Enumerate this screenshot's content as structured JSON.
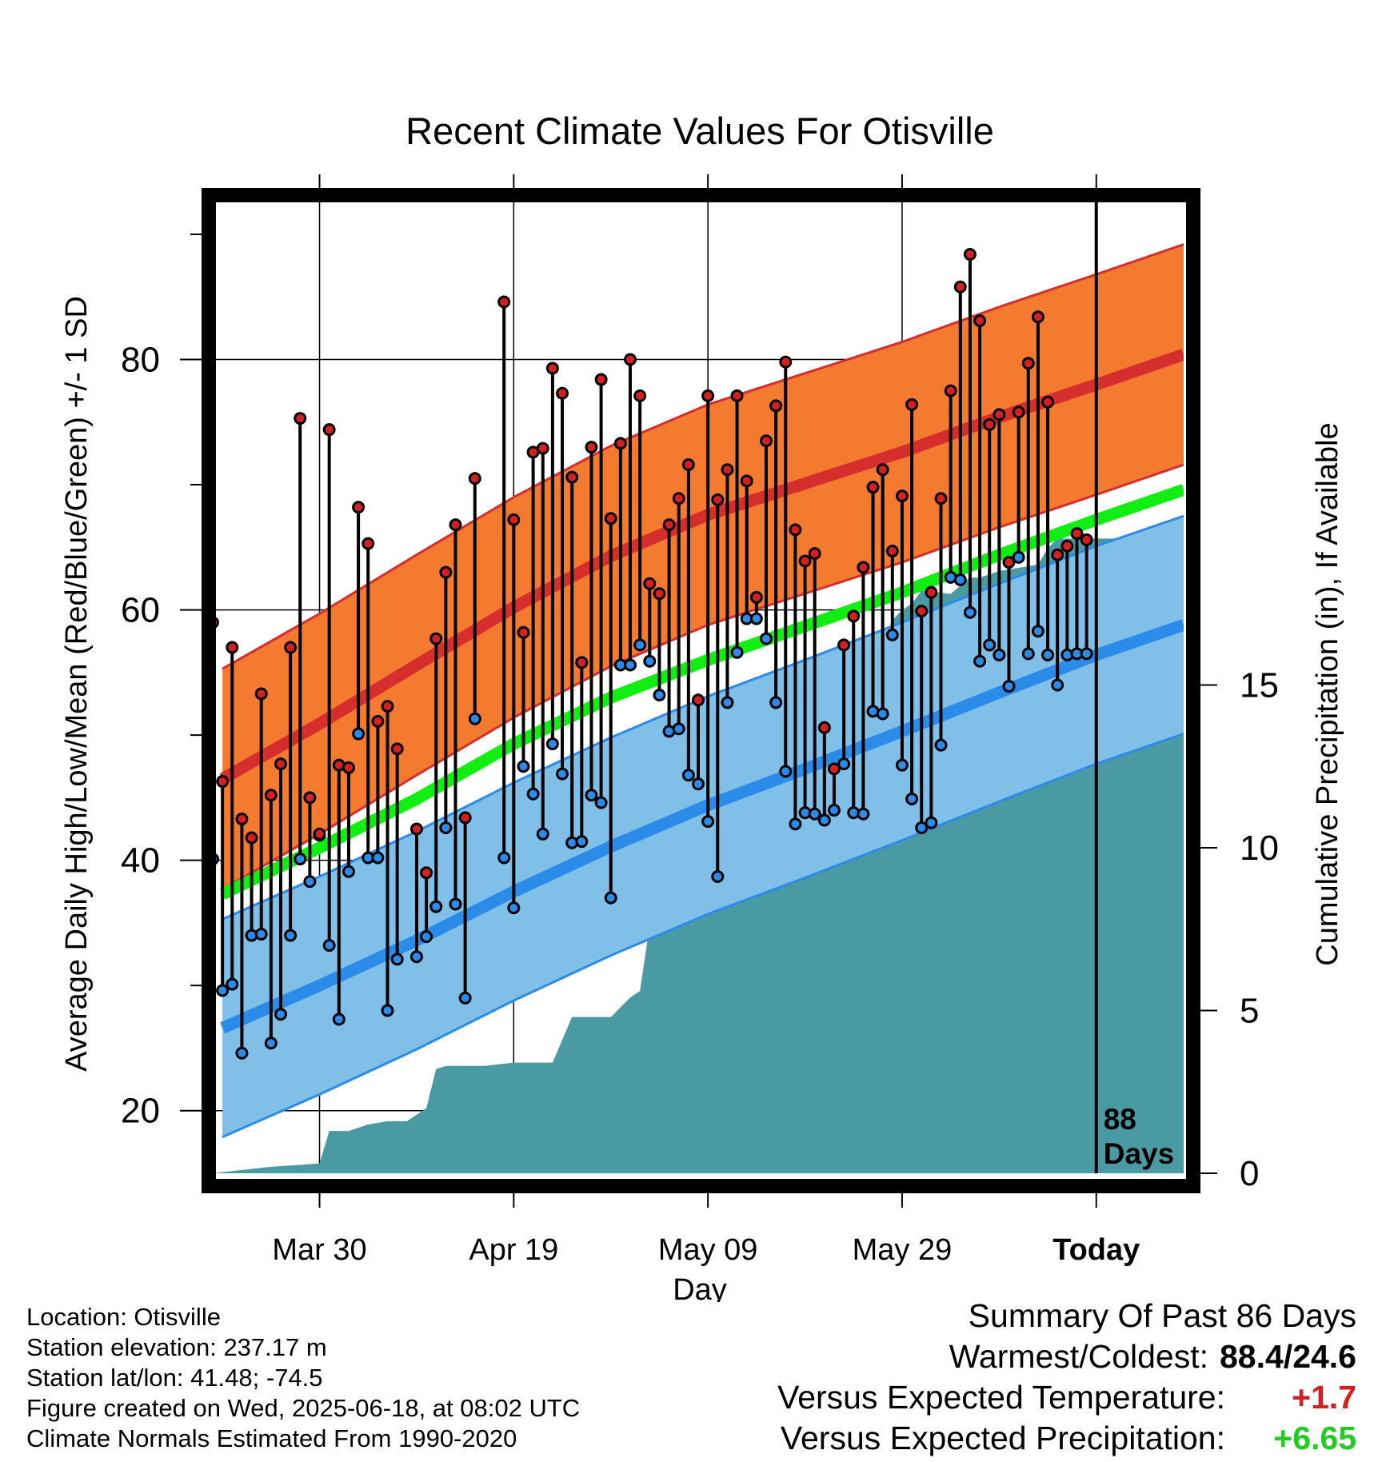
{
  "chart_data": {
    "type": "line",
    "title": "Recent Climate Values For Otisville",
    "xlabel": "Day",
    "ylabel_left": "Average Daily High/Low/Mean (Red/Blue/Green) +/- 1 SD",
    "ylabel_right": "Cumulative Precipitation (in), If Available",
    "ylim_left": [
      15,
      93
    ],
    "ylim_right": [
      0,
      30
    ],
    "xlim_days": [
      -91,
      9
    ],
    "x_ticks": [
      {
        "day": -80,
        "label": "Mar 30"
      },
      {
        "day": -60,
        "label": "Apr 19"
      },
      {
        "day": -40,
        "label": "May 09"
      },
      {
        "day": -20,
        "label": "May 29"
      },
      {
        "day": 0,
        "label": "Today"
      }
    ],
    "y_ticks_left": [
      20,
      40,
      60,
      80
    ],
    "y_ticks_right": [
      0,
      5,
      10,
      15
    ],
    "grid": true,
    "today_marker": {
      "day": 0,
      "label_line1": "88",
      "label_line2": "Days"
    },
    "normals": {
      "days": [
        -90,
        -80,
        -70,
        -60,
        -50,
        -40,
        -30,
        -20,
        -10,
        0,
        9
      ],
      "high_mean": [
        46.5,
        50.9,
        55.6,
        60.2,
        64.3,
        67.6,
        70.1,
        72.6,
        75.4,
        78.0,
        80.4
      ],
      "high_sd": 8.8,
      "low_mean": [
        26.6,
        30.0,
        33.6,
        37.5,
        41.1,
        44.4,
        47.3,
        50.3,
        53.4,
        56.4,
        58.8
      ],
      "low_sd": 8.7,
      "mean_mean": [
        37.3,
        41.0,
        44.9,
        49.3,
        53.0,
        56.0,
        58.7,
        61.4,
        64.4,
        67.2,
        69.6
      ],
      "colors": {
        "high": "#d62d2d",
        "high_band": "#f47a30",
        "low": "#2b8be8",
        "low_band": "#7fbfe8",
        "mean": "#11ee11",
        "precip": "#4a9aa3"
      }
    },
    "precipitation": {
      "days": [
        -91,
        -88,
        -85,
        -80,
        -79,
        -77,
        -75,
        -73,
        -71,
        -69,
        -68,
        -67,
        -63,
        -60,
        -57,
        -56,
        -54,
        -52,
        -50,
        -48,
        -47,
        -46,
        -45,
        -44,
        -43,
        -42,
        -41,
        -40,
        -39,
        -37,
        -36,
        -35,
        -34,
        -33,
        -32,
        -30,
        -29,
        -28,
        -27,
        -25,
        -24,
        -23,
        -22,
        -21,
        -20,
        -19,
        -18,
        -15,
        -13,
        -12,
        -10,
        -8,
        -6,
        -5,
        -4,
        -3,
        9
      ],
      "values": [
        0,
        0.1,
        0.2,
        0.3,
        1.3,
        1.3,
        1.5,
        1.6,
        1.6,
        2.0,
        3.2,
        3.3,
        3.3,
        3.4,
        3.4,
        3.4,
        4.8,
        4.8,
        4.8,
        5.4,
        5.6,
        7.6,
        8.8,
        9.3,
        9.5,
        10.2,
        11.2,
        11.6,
        11.4,
        11.9,
        13.4,
        13.5,
        13.7,
        13.6,
        13.9,
        14.1,
        14.6,
        14.7,
        14.8,
        14.9,
        15.1,
        16.2,
        16.2,
        17.0,
        17.3,
        17.5,
        17.9,
        17.8,
        18.3,
        18.3,
        18.5,
        18.6,
        18.7,
        19.2,
        19.5,
        19.5,
        19.5
      ]
    },
    "observed": {
      "days": [
        -91,
        -90,
        -89,
        -88,
        -87,
        -86,
        -85,
        -84,
        -83,
        -82,
        -81,
        -80,
        -79,
        -78,
        -77,
        -76,
        -75,
        -74,
        -73,
        -72,
        -70,
        -69,
        -68,
        -67,
        -66,
        -65,
        -64,
        -61,
        -60,
        -59,
        -58,
        -57,
        -56,
        -55,
        -54,
        -53,
        -52,
        -51,
        -50,
        -49,
        -48,
        -47,
        -46,
        -45,
        -44,
        -43,
        -42,
        -41,
        -40,
        -39,
        -38,
        -37,
        -36,
        -35,
        -34,
        -33,
        -32,
        -31,
        -30,
        -29,
        -28,
        -27,
        -26,
        -25,
        -24,
        -23,
        -22,
        -21,
        -20,
        -19,
        -18,
        -17,
        -16,
        -15,
        -14,
        -13,
        -12,
        -11,
        -10,
        -9,
        -8,
        -7,
        -6,
        -5,
        -4,
        -3,
        -2,
        -1
      ],
      "high": [
        59.0,
        46.3,
        57.0,
        43.3,
        41.8,
        53.3,
        45.2,
        47.7,
        57.0,
        75.3,
        45.0,
        42.1,
        74.4,
        47.6,
        47.4,
        68.2,
        65.3,
        51.1,
        52.3,
        48.9,
        42.5,
        39.0,
        57.7,
        63.0,
        66.8,
        43.4,
        70.5,
        84.6,
        67.2,
        58.2,
        72.6,
        72.9,
        79.3,
        77.3,
        70.6,
        55.8,
        73.0,
        78.4,
        67.3,
        73.3,
        80.0,
        77.1,
        62.1,
        61.3,
        66.8,
        68.9,
        71.6,
        52.8,
        77.1,
        68.8,
        71.2,
        77.1,
        70.3,
        61.0,
        73.5,
        76.3,
        79.8,
        66.4,
        63.9,
        64.5,
        50.6,
        47.3,
        57.2,
        59.5,
        63.4,
        69.8,
        71.2,
        64.7,
        69.1,
        76.4,
        59.9,
        61.4,
        68.9,
        77.5,
        85.8,
        88.4,
        83.1,
        74.8,
        75.6,
        63.8,
        75.8,
        79.7,
        83.4,
        76.6,
        64.4,
        65.1,
        66.1,
        65.6
      ],
      "low": [
        40.1,
        29.6,
        30.1,
        24.6,
        34.0,
        34.1,
        25.4,
        27.7,
        34.0,
        40.1,
        38.3,
        42.0,
        33.2,
        27.3,
        39.1,
        50.1,
        40.2,
        40.2,
        28.0,
        32.1,
        32.3,
        33.9,
        36.3,
        42.6,
        36.5,
        29.0,
        51.3,
        40.2,
        36.2,
        47.5,
        45.3,
        42.1,
        49.3,
        46.9,
        41.4,
        41.5,
        45.2,
        44.6,
        37.0,
        55.6,
        55.6,
        57.2,
        55.9,
        53.2,
        50.3,
        50.5,
        46.8,
        46.1,
        43.1,
        38.7,
        52.6,
        56.6,
        59.3,
        59.3,
        57.7,
        52.6,
        47.1,
        42.9,
        43.8,
        43.7,
        43.2,
        44.0,
        47.7,
        43.8,
        43.7,
        51.9,
        51.7,
        58.0,
        47.6,
        44.9,
        42.6,
        43.0,
        49.2,
        62.6,
        62.4,
        59.8,
        55.9,
        57.2,
        56.4,
        53.9,
        64.2,
        56.5,
        58.3,
        56.4,
        54.0,
        56.4,
        56.5,
        56.5
      ]
    }
  },
  "footer": {
    "location": "Location: Otisville",
    "elevation": "Station elevation: 237.17 m",
    "latlon": "Station lat/lon: 41.48; -74.5",
    "created": "Figure created on Wed, 2025-06-18, at 08:02 UTC",
    "normals": "Climate Normals Estimated From 1990-2020"
  },
  "summary": {
    "heading": "Summary Of Past 86 Days",
    "warm_cold_label": "Warmest/Coldest:",
    "warm_cold_value": "88.4/24.6",
    "temp_label": "Versus Expected Temperature:",
    "temp_value": "+1.7",
    "precip_label": "Versus Expected Precipitation:",
    "precip_value": "+6.65"
  }
}
